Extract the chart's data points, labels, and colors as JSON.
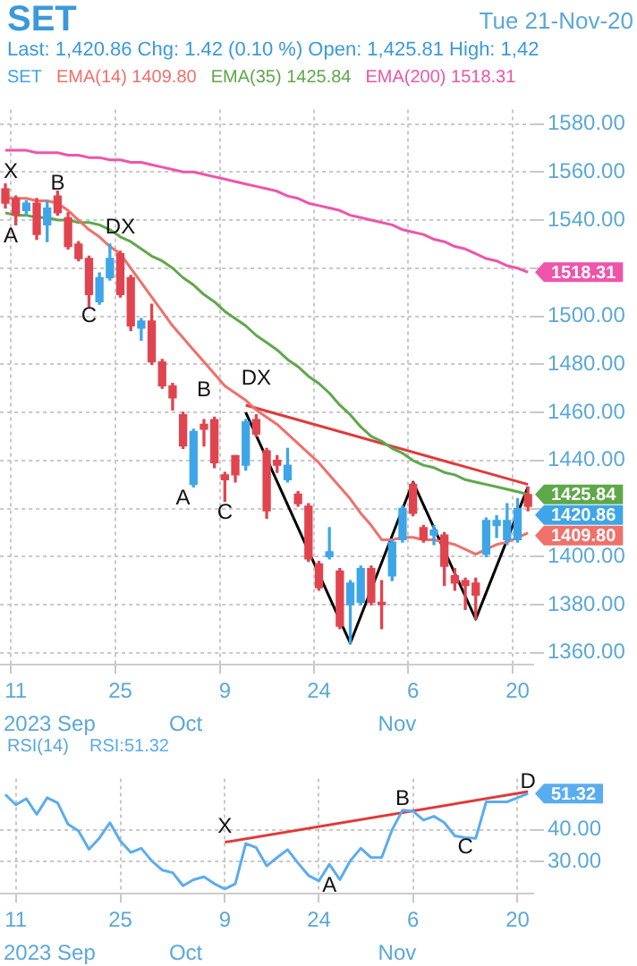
{
  "chart_data": [
    {
      "type": "candlestick",
      "title": "SET",
      "subtitle": "Last: 1,420.86 Chg: 1.42 (0.10 %) Open: 1,425.81 High: 1,42",
      "annotations": [
        "Tue 21-Nov-20",
        "2023 Sep",
        "Oct",
        "Nov",
        "X",
        "B",
        "A",
        "DX",
        "C",
        "B",
        "DX",
        "A",
        "C"
      ],
      "categories": [
        null,
        "11",
        null,
        null,
        null,
        null,
        null,
        null,
        null,
        null,
        null,
        "25",
        null,
        null,
        null,
        null,
        null,
        null,
        null,
        null,
        null,
        "9",
        null,
        null,
        null,
        null,
        null,
        null,
        null,
        null,
        "24",
        null,
        null,
        null,
        null,
        null,
        null,
        null,
        null,
        "6",
        null,
        null,
        null,
        null,
        null,
        null,
        null,
        null,
        null,
        "20",
        null
      ],
      "series": [
        {
          "name": "SET",
          "type": "candlestick",
          "color": "#3ea6e8",
          "ohlc": [
            [
              1553,
              1555,
              1545,
              1547
            ],
            [
              1549,
              1550,
              1538,
              1542
            ],
            [
              1544,
              1548,
              1542,
              1547
            ],
            [
              1547,
              1549,
              1532,
              1534
            ],
            [
              1538,
              1548,
              1531,
              1545
            ],
            [
              1550,
              1552,
              1542,
              1543
            ],
            [
              1541,
              1543,
              1528,
              1529
            ],
            [
              1530,
              1531,
              1523,
              1524
            ],
            [
              1524,
              1525,
              1504,
              1509
            ],
            [
              1506,
              1518,
              1505,
              1516
            ],
            [
              1516,
              1530,
              1515,
              1524
            ],
            [
              1526,
              1527,
              1508,
              1509
            ],
            [
              1516,
              1517,
              1494,
              1496
            ],
            [
              1495,
              1499,
              1490,
              1498
            ],
            [
              1498,
              1505,
              1480,
              1481
            ],
            [
              1481,
              1482,
              1470,
              1471
            ],
            [
              1471,
              1472,
              1461,
              1466
            ],
            [
              1459,
              1460,
              1445,
              1446
            ],
            [
              1430,
              1453,
              1429,
              1452
            ],
            [
              1455,
              1457,
              1446,
              1453
            ],
            [
              1457,
              1458,
              1437,
              1439
            ],
            [
              1434,
              1435,
              1423,
              1432
            ],
            [
              1442,
              1442,
              1431,
              1434
            ],
            [
              1438,
              1457,
              1436,
              1456
            ],
            [
              1457,
              1459,
              1450,
              1451
            ],
            [
              1444,
              1445,
              1416,
              1419
            ],
            [
              1440,
              1442,
              1435,
              1438
            ],
            [
              1432,
              1445,
              1431,
              1438
            ],
            [
              1426,
              1427,
              1421,
              1422
            ],
            [
              1421,
              1422,
              1398,
              1399
            ],
            [
              1397,
              1398,
              1386,
              1387
            ],
            [
              1400,
              1412,
              1399,
              1402
            ],
            [
              1394,
              1395,
              1370,
              1371
            ],
            [
              1380,
              1390,
              1364,
              1389
            ],
            [
              1381,
              1396,
              1380,
              1395
            ],
            [
              1395,
              1396,
              1380,
              1381
            ],
            [
              1381,
              1390,
              1370,
              1380
            ],
            [
              1392,
              1407,
              1390,
              1406
            ],
            [
              1407,
              1421,
              1406,
              1420
            ],
            [
              1430,
              1431,
              1417,
              1418
            ],
            [
              1412,
              1413,
              1406,
              1407
            ],
            [
              1409,
              1413,
              1405,
              1411
            ],
            [
              1409,
              1410,
              1388,
              1396
            ],
            [
              1392,
              1395,
              1386,
              1389
            ],
            [
              1390,
              1391,
              1378,
              1388
            ],
            [
              1389,
              1391,
              1374,
              1384
            ],
            [
              1401,
              1416,
              1400,
              1415
            ],
            [
              1413,
              1417,
              1408,
              1415
            ],
            [
              1407,
              1422,
              1405,
              1415
            ],
            [
              1407,
              1424,
              1406,
              1420
            ],
            [
              1425.81,
              1429,
              1419,
              1420.86
            ]
          ],
          "colors": [
            "#e0454f",
            "#e0454f",
            "#3ea6e8",
            "#e0454f",
            "#3ea6e8",
            "#e0454f",
            "#e0454f",
            "#e0454f",
            "#e0454f",
            "#3ea6e8",
            "#3ea6e8",
            "#e0454f",
            "#e0454f",
            "#3ea6e8",
            "#e0454f",
            "#e0454f",
            "#e0454f",
            "#e0454f",
            "#3ea6e8",
            "#e0454f",
            "#e0454f",
            "#e0454f",
            "#e0454f",
            "#3ea6e8",
            "#e0454f",
            "#e0454f",
            "#e0454f",
            "#3ea6e8",
            "#e0454f",
            "#e0454f",
            "#e0454f",
            "#3ea6e8",
            "#e0454f",
            "#3ea6e8",
            "#3ea6e8",
            "#e0454f",
            "#e0454f",
            "#3ea6e8",
            "#3ea6e8",
            "#e0454f",
            "#e0454f",
            "#3ea6e8",
            "#e0454f",
            "#e0454f",
            "#e0454f",
            "#e0454f",
            "#3ea6e8",
            "#3ea6e8",
            "#3ea6e8",
            "#3ea6e8",
            "#e0454f"
          ],
          "value_labels": [
            null,
            null,
            null,
            null,
            null,
            null,
            null,
            null,
            null,
            null,
            null,
            null,
            null,
            null,
            null,
            null,
            null,
            null,
            null,
            null,
            null,
            null,
            null,
            null,
            null,
            null,
            null,
            null,
            null,
            null,
            null,
            null,
            null,
            null,
            null,
            null,
            null,
            null,
            null,
            null,
            null,
            null,
            null,
            null,
            null,
            null,
            null,
            null,
            null,
            null,
            "1420.86"
          ]
        },
        {
          "name": "EMA(14) 1409.80",
          "type": "line",
          "color": "#f0706a",
          "values": [
            1549,
            1549,
            1549,
            1548,
            1548,
            1547,
            1544,
            1540,
            1536,
            1533,
            1529,
            1526,
            1520,
            1514,
            1508,
            1502,
            1496,
            1491,
            1486,
            1481,
            1476,
            1471,
            1468,
            1465,
            1461,
            1458,
            1455,
            1451,
            1447,
            1443,
            1439,
            1434,
            1429,
            1424,
            1418,
            1413,
            1407,
            1407,
            1408,
            1408,
            1407,
            1407,
            1406,
            1405,
            1403,
            1401,
            1403,
            1405,
            1406,
            1408,
            1409.8
          ],
          "value_labels": [
            null,
            null,
            null,
            null,
            null,
            null,
            null,
            null,
            null,
            null,
            null,
            null,
            null,
            null,
            null,
            null,
            null,
            null,
            null,
            null,
            null,
            null,
            null,
            null,
            null,
            null,
            null,
            null,
            null,
            null,
            null,
            null,
            null,
            null,
            null,
            null,
            null,
            null,
            null,
            null,
            null,
            null,
            null,
            null,
            null,
            null,
            null,
            null,
            null,
            null,
            "1409.80"
          ]
        },
        {
          "name": "EMA(35) 1425.84",
          "type": "line",
          "color": "#5fa84a",
          "values": [
            1543,
            1542,
            1542,
            1541,
            1541,
            1540,
            1540,
            1539,
            1539,
            1538,
            1536,
            1533,
            1531,
            1528,
            1525,
            1523,
            1520,
            1516,
            1513,
            1509,
            1506,
            1502,
            1499,
            1496,
            1492,
            1489,
            1486,
            1482,
            1479,
            1475,
            1472,
            1468,
            1463,
            1459,
            1454,
            1450,
            1448,
            1445,
            1443,
            1440,
            1438,
            1437,
            1435,
            1434,
            1432,
            1431,
            1430,
            1429,
            1428,
            1427,
            1425.84
          ],
          "value_labels": [
            null,
            null,
            null,
            null,
            null,
            null,
            null,
            null,
            null,
            null,
            null,
            null,
            null,
            null,
            null,
            null,
            null,
            null,
            null,
            null,
            null,
            null,
            null,
            null,
            null,
            null,
            null,
            null,
            null,
            null,
            null,
            null,
            null,
            null,
            null,
            null,
            null,
            null,
            null,
            null,
            null,
            null,
            null,
            null,
            null,
            null,
            null,
            null,
            null,
            null,
            "1425.84"
          ]
        },
        {
          "name": "EMA(200) 1518.31",
          "type": "line",
          "color": "#ee55aa",
          "values": [
            1569,
            1569,
            1569,
            1568,
            1568,
            1568,
            1567,
            1567,
            1566,
            1566,
            1565,
            1565,
            1564,
            1564,
            1563,
            1562,
            1561,
            1560,
            1560,
            1559,
            1558,
            1557,
            1556,
            1555,
            1554,
            1553,
            1552,
            1550,
            1549,
            1547,
            1546,
            1545,
            1544,
            1542,
            1541,
            1540,
            1539,
            1538,
            1536,
            1535,
            1534,
            1532,
            1531,
            1529,
            1528,
            1526,
            1524,
            1523,
            1521,
            1520,
            1518.31
          ],
          "value_labels": [
            null,
            null,
            null,
            null,
            null,
            null,
            null,
            null,
            null,
            null,
            null,
            null,
            null,
            null,
            null,
            null,
            null,
            null,
            null,
            null,
            null,
            null,
            null,
            null,
            null,
            null,
            null,
            null,
            null,
            null,
            null,
            null,
            null,
            null,
            null,
            null,
            null,
            null,
            null,
            null,
            null,
            null,
            null,
            null,
            null,
            null,
            null,
            null,
            null,
            null,
            "1518.31"
          ]
        },
        {
          "type": "line",
          "color": "#000000",
          "values": [
            null,
            null,
            null,
            null,
            null,
            null,
            null,
            null,
            null,
            null,
            null,
            null,
            null,
            null,
            null,
            null,
            null,
            null,
            null,
            null,
            null,
            null,
            null,
            1460,
            null,
            null,
            null,
            null,
            null,
            null,
            null,
            null,
            null,
            1364,
            null,
            null,
            null,
            null,
            null,
            1431,
            null,
            null,
            null,
            null,
            null,
            1374,
            null,
            null,
            null,
            null,
            1429
          ]
        },
        {
          "type": "line",
          "color": "#e03a3a",
          "values": [
            null,
            null,
            null,
            null,
            null,
            null,
            null,
            null,
            null,
            null,
            null,
            null,
            null,
            null,
            null,
            null,
            null,
            null,
            null,
            null,
            null,
            null,
            null,
            1463,
            null,
            null,
            null,
            null,
            null,
            null,
            null,
            null,
            null,
            null,
            null,
            null,
            null,
            null,
            null,
            null,
            null,
            null,
            null,
            null,
            null,
            null,
            null,
            null,
            null,
            null,
            1430
          ]
        }
      ],
      "ylim": [
        1355,
        1586
      ],
      "yticks": [
        {
          "value": 1360,
          "label": "1360.00"
        },
        {
          "value": 1380,
          "label": "1380.00"
        },
        {
          "value": 1400,
          "label": "1400.00"
        },
        {
          "value": 1420,
          "label": null
        },
        {
          "value": 1440,
          "label": "1440.00"
        },
        {
          "value": 1460,
          "label": "1460.00"
        },
        {
          "value": 1480,
          "label": "1480.00"
        },
        {
          "value": 1500,
          "label": "1500.00"
        },
        {
          "value": 1520,
          "label": null
        },
        {
          "value": 1540,
          "label": "1540.00"
        },
        {
          "value": 1560,
          "label": "1560.00"
        },
        {
          "value": 1580,
          "label": "1580.00"
        }
      ],
      "grid": true,
      "legend": "top left"
    },
    {
      "type": "line",
      "title": "RSI(14)",
      "annotations": [
        "2023 Sep",
        "Oct",
        "Nov",
        "X",
        "B",
        "C",
        "A",
        "D"
      ],
      "categories": [
        null,
        "11",
        null,
        null,
        null,
        null,
        null,
        null,
        null,
        null,
        null,
        "25",
        null,
        null,
        null,
        null,
        null,
        null,
        null,
        null,
        null,
        "9",
        null,
        null,
        null,
        null,
        null,
        null,
        null,
        null,
        "24",
        null,
        null,
        null,
        null,
        null,
        null,
        null,
        null,
        "6",
        null,
        null,
        null,
        null,
        null,
        null,
        null,
        null,
        null,
        "20",
        null
      ],
      "series": [
        {
          "name": "RSI:51.32",
          "color": "#5aacf0",
          "values": [
            51.0,
            47.8,
            49.7,
            44.8,
            50.0,
            48.4,
            41.7,
            39.6,
            33.9,
            37.4,
            42.2,
            36.5,
            32.9,
            34.2,
            30.3,
            27.4,
            26.6,
            22.5,
            24.4,
            25.3,
            23.1,
            21.5,
            23.1,
            35.7,
            34.4,
            28.7,
            31.3,
            33.8,
            29.6,
            25.7,
            24.0,
            29.2,
            24.4,
            30.3,
            34.2,
            31.3,
            31.3,
            40.0,
            46.1,
            45.8,
            43.0,
            44.2,
            42.2,
            38.1,
            37.5,
            37.3,
            48.7,
            48.7,
            48.7,
            50.0,
            51.32
          ],
          "value_labels": [
            null,
            null,
            null,
            null,
            null,
            null,
            null,
            null,
            null,
            null,
            null,
            null,
            null,
            null,
            null,
            null,
            null,
            null,
            null,
            null,
            null,
            null,
            null,
            null,
            null,
            null,
            null,
            null,
            null,
            null,
            null,
            null,
            null,
            null,
            null,
            null,
            null,
            null,
            null,
            null,
            null,
            null,
            null,
            null,
            null,
            null,
            null,
            null,
            null,
            null,
            "51.32"
          ]
        },
        {
          "color": "#e03a3a",
          "values": [
            null,
            null,
            null,
            null,
            null,
            null,
            null,
            null,
            null,
            null,
            null,
            null,
            null,
            null,
            null,
            null,
            null,
            null,
            null,
            null,
            null,
            36.1,
            null,
            null,
            null,
            null,
            null,
            null,
            null,
            null,
            null,
            null,
            null,
            null,
            null,
            null,
            null,
            null,
            null,
            null,
            null,
            null,
            null,
            null,
            null,
            null,
            null,
            null,
            null,
            null,
            51.9
          ]
        }
      ],
      "ylim": [
        20,
        56
      ],
      "yticks": [
        {
          "value": 30,
          "label": "30.00"
        },
        {
          "value": 40,
          "label": "40.00"
        }
      ],
      "grid": true,
      "legend": "top left"
    }
  ]
}
